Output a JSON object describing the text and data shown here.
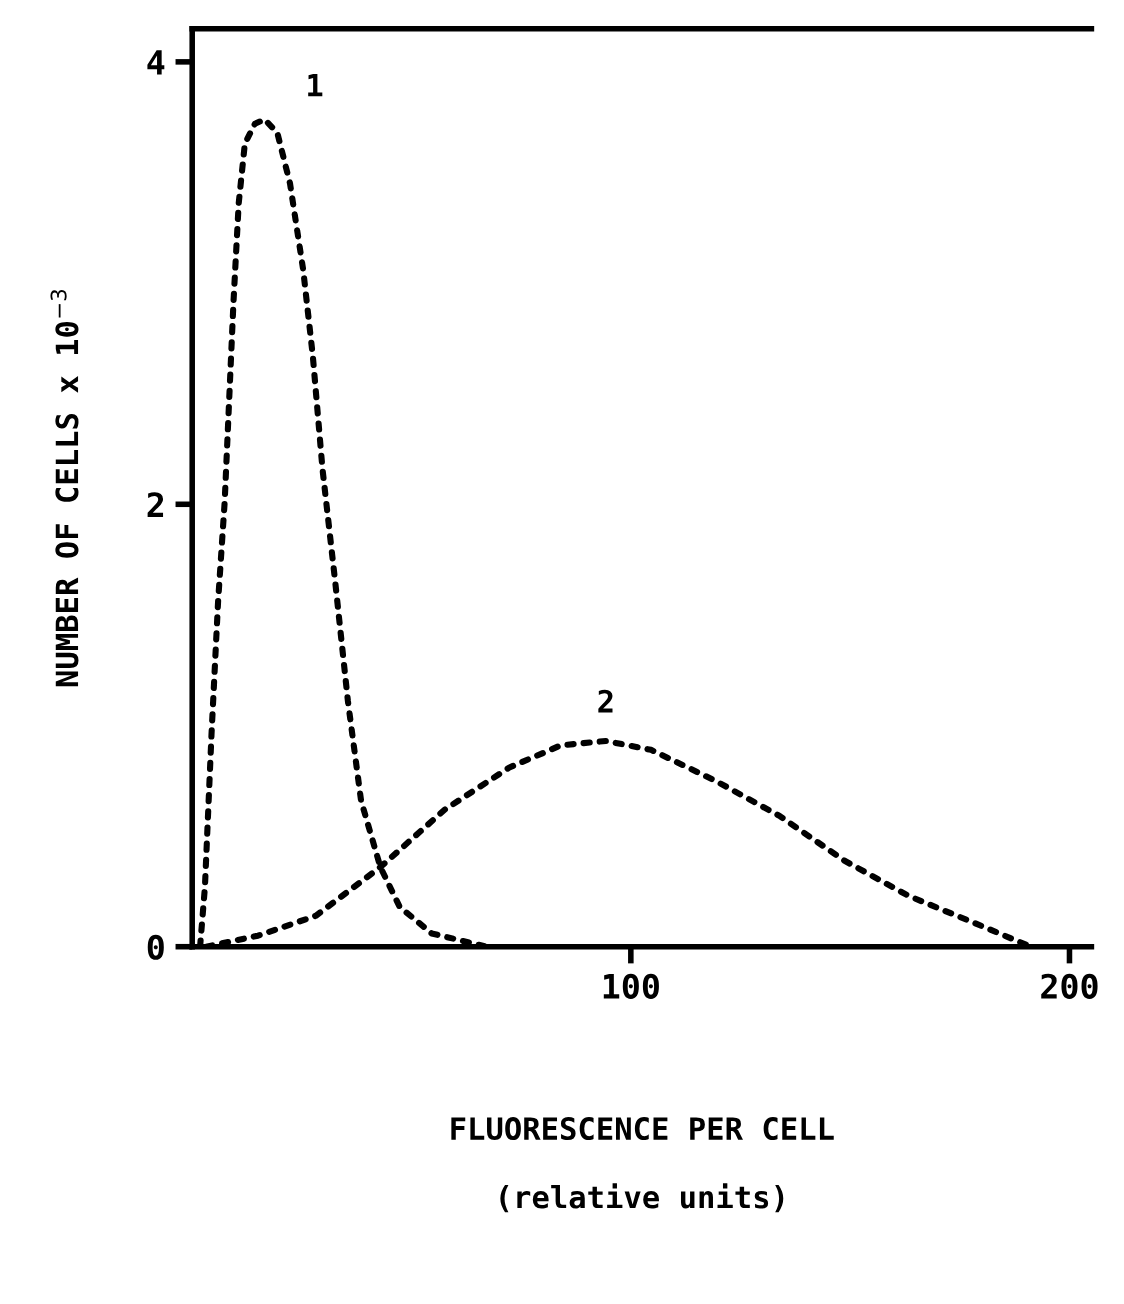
{
  "chart_data": {
    "type": "line",
    "xlabel": "FLUORESCENCE PER CELL\n\n(relative units)",
    "ylabel": "NUMBER OF CELLS x 10$^{−3}$",
    "series": [
      {
        "name": "1",
        "color": "#000000",
        "x": [
          1.8,
          2.9,
          4.4,
          5.9,
          7.4,
          8.4,
          9.4,
          10.6,
          12.0,
          14.3,
          16.5,
          19.4,
          22.3,
          25.3,
          27.5,
          29.7,
          32.6,
          35.5,
          38.5,
          42.9,
          47.3,
          54.6,
          67.1
        ],
        "values": [
          0,
          0.27,
          0.96,
          1.56,
          2.01,
          2.46,
          2.91,
          3.36,
          3.63,
          3.72,
          3.74,
          3.68,
          3.45,
          3.06,
          2.67,
          2.16,
          1.65,
          1.11,
          0.66,
          0.36,
          0.18,
          0.06,
          0
        ]
      },
      {
        "name": "2",
        "color": "#000000",
        "x": [
          3.2,
          15,
          28.2,
          42.9,
          57.6,
          72.3,
          84,
          94.3,
          104.6,
          119.3,
          134,
          148.6,
          163.3,
          178,
          191.2
        ],
        "values": [
          0,
          0.05,
          0.14,
          0.36,
          0.62,
          0.81,
          0.91,
          0.93,
          0.89,
          0.75,
          0.59,
          0.39,
          0.23,
          0.11,
          0
        ]
      }
    ],
    "xlim": [
      0,
      205
    ],
    "ylim": [
      0,
      4.15
    ],
    "xticks": [
      100,
      200
    ],
    "yticks": [
      0,
      2,
      4
    ],
    "line_style": "dotted",
    "marker": "none",
    "grid": false,
    "legend": false
  }
}
